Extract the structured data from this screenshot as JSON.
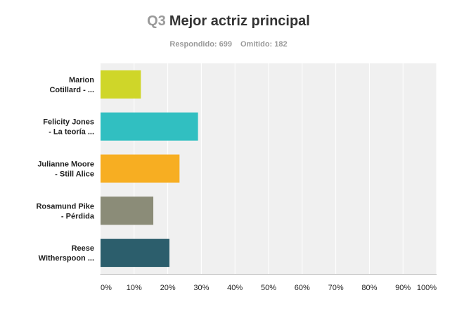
{
  "header": {
    "question_number": "Q3",
    "question_title": "Mejor actriz principal",
    "answered_label": "Respondido: 699",
    "skipped_label": "Omitido: 182"
  },
  "chart_data": {
    "type": "bar",
    "orientation": "horizontal",
    "categories": [
      [
        "Marion",
        "Cotillard - ..."
      ],
      [
        "Felicity Jones",
        "- La teoría ..."
      ],
      [
        "Julianne Moore",
        "- Still Alice"
      ],
      [
        "Rosamund Pike",
        "- Pérdida"
      ],
      [
        "Reese",
        "Witherspoon ..."
      ]
    ],
    "values": [
      12,
      29,
      23.5,
      15.7,
      20.5
    ],
    "bar_colors": [
      "#cfd629",
      "#31bfc1",
      "#f7ae22",
      "#8b8c78",
      "#2c5e6c"
    ],
    "xlim": [
      0,
      100
    ],
    "xticks": [
      "0%",
      "10%",
      "20%",
      "30%",
      "40%",
      "50%",
      "60%",
      "70%",
      "80%",
      "90%",
      "100%"
    ],
    "grid": true,
    "plot_background": "#f0f0f0",
    "grid_color": "#ffffff"
  }
}
